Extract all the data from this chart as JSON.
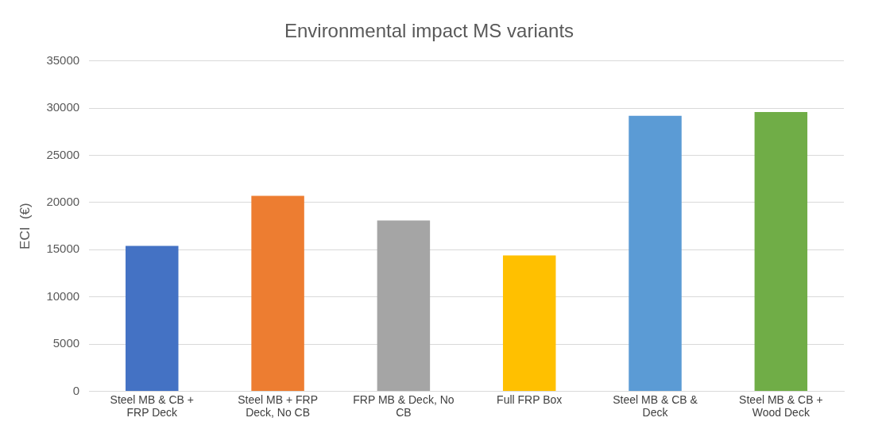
{
  "chart_data": {
    "type": "bar",
    "title": "Environmental impact MS variants",
    "ylabel": "ECI  (€)",
    "categories": [
      "Steel MB & CB + FRP Deck",
      "Steel MB + FRP Deck, No CB",
      "FRP MB & Deck, No CB",
      "Full FRP Box",
      "Steel MB & CB & Deck",
      "Steel MB & CB + Wood Deck"
    ],
    "values": [
      15400,
      20700,
      18100,
      14400,
      29200,
      29600
    ],
    "colors": [
      "#4472c4",
      "#ed7d31",
      "#a5a5a5",
      "#ffc000",
      "#5b9bd5",
      "#70ad47"
    ],
    "ylim": [
      0,
      35000
    ],
    "yticks": [
      0,
      5000,
      10000,
      15000,
      20000,
      25000,
      30000,
      35000
    ],
    "grid": "y",
    "legend": false
  }
}
